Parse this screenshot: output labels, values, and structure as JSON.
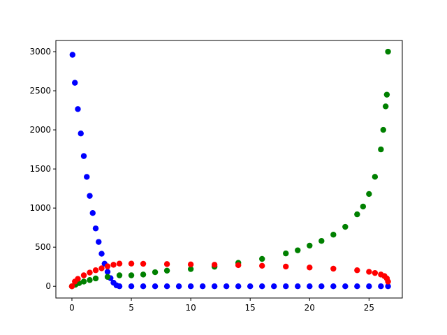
{
  "chart_data": {
    "type": "scatter",
    "xlim": [
      -1.35,
      27.8
    ],
    "xticks": [
      0,
      5,
      10,
      15,
      20,
      25
    ],
    "ylim": [
      -150,
      3143
    ],
    "yticks": [
      0,
      500,
      1000,
      1500,
      2000,
      2500,
      3000
    ],
    "series": [
      {
        "color": "blue",
        "x": [
          0.05,
          0.25,
          0.5,
          0.75,
          1,
          1.25,
          1.5,
          1.75,
          2,
          2.25,
          2.5,
          2.75,
          3,
          3.25,
          3.5,
          3.75,
          4,
          5,
          6,
          7,
          8,
          9,
          10,
          11,
          12,
          13,
          14,
          15,
          16,
          17,
          18,
          19,
          20,
          21,
          22,
          23,
          24,
          25,
          26,
          26.6
        ],
        "values": [
          2960,
          2602,
          2266,
          1954,
          1665,
          1399,
          1156,
          937,
          740,
          567,
          416,
          289,
          185,
          104,
          46,
          12,
          0,
          0,
          0,
          0,
          0,
          0,
          0,
          0,
          0,
          0,
          0,
          0,
          0,
          0,
          0,
          0,
          0,
          0,
          0,
          0,
          0,
          0,
          0,
          0
        ]
      },
      {
        "color": "green",
        "x": [
          0,
          0.3,
          0.6,
          1,
          1.5,
          2,
          3,
          4,
          5,
          6,
          7,
          8,
          10,
          12,
          14,
          16,
          18,
          19,
          20,
          21,
          22,
          23,
          24,
          24.5,
          25,
          25.5,
          26,
          26.2,
          26.4,
          26.5,
          26.6
        ],
        "values": [
          0,
          20,
          40,
          60,
          80,
          100,
          120,
          140,
          140,
          150,
          180,
          200,
          220,
          250,
          300,
          350,
          420,
          460,
          520,
          580,
          660,
          760,
          920,
          1020,
          1180,
          1400,
          1750,
          2000,
          2300,
          2450,
          3000
        ]
      },
      {
        "color": "red",
        "x": [
          0,
          0.25,
          0.5,
          1,
          1.5,
          2,
          2.5,
          3,
          3.5,
          4,
          5,
          6,
          8,
          10,
          12,
          14,
          16,
          18,
          20,
          22,
          24,
          25,
          25.5,
          26,
          26.3,
          26.5,
          26.6
        ],
        "values": [
          0,
          60,
          95,
          140,
          175,
          205,
          230,
          255,
          275,
          290,
          290,
          288,
          284,
          280,
          275,
          270,
          262,
          252,
          240,
          225,
          205,
          185,
          170,
          150,
          130,
          100,
          60
        ]
      }
    ]
  }
}
